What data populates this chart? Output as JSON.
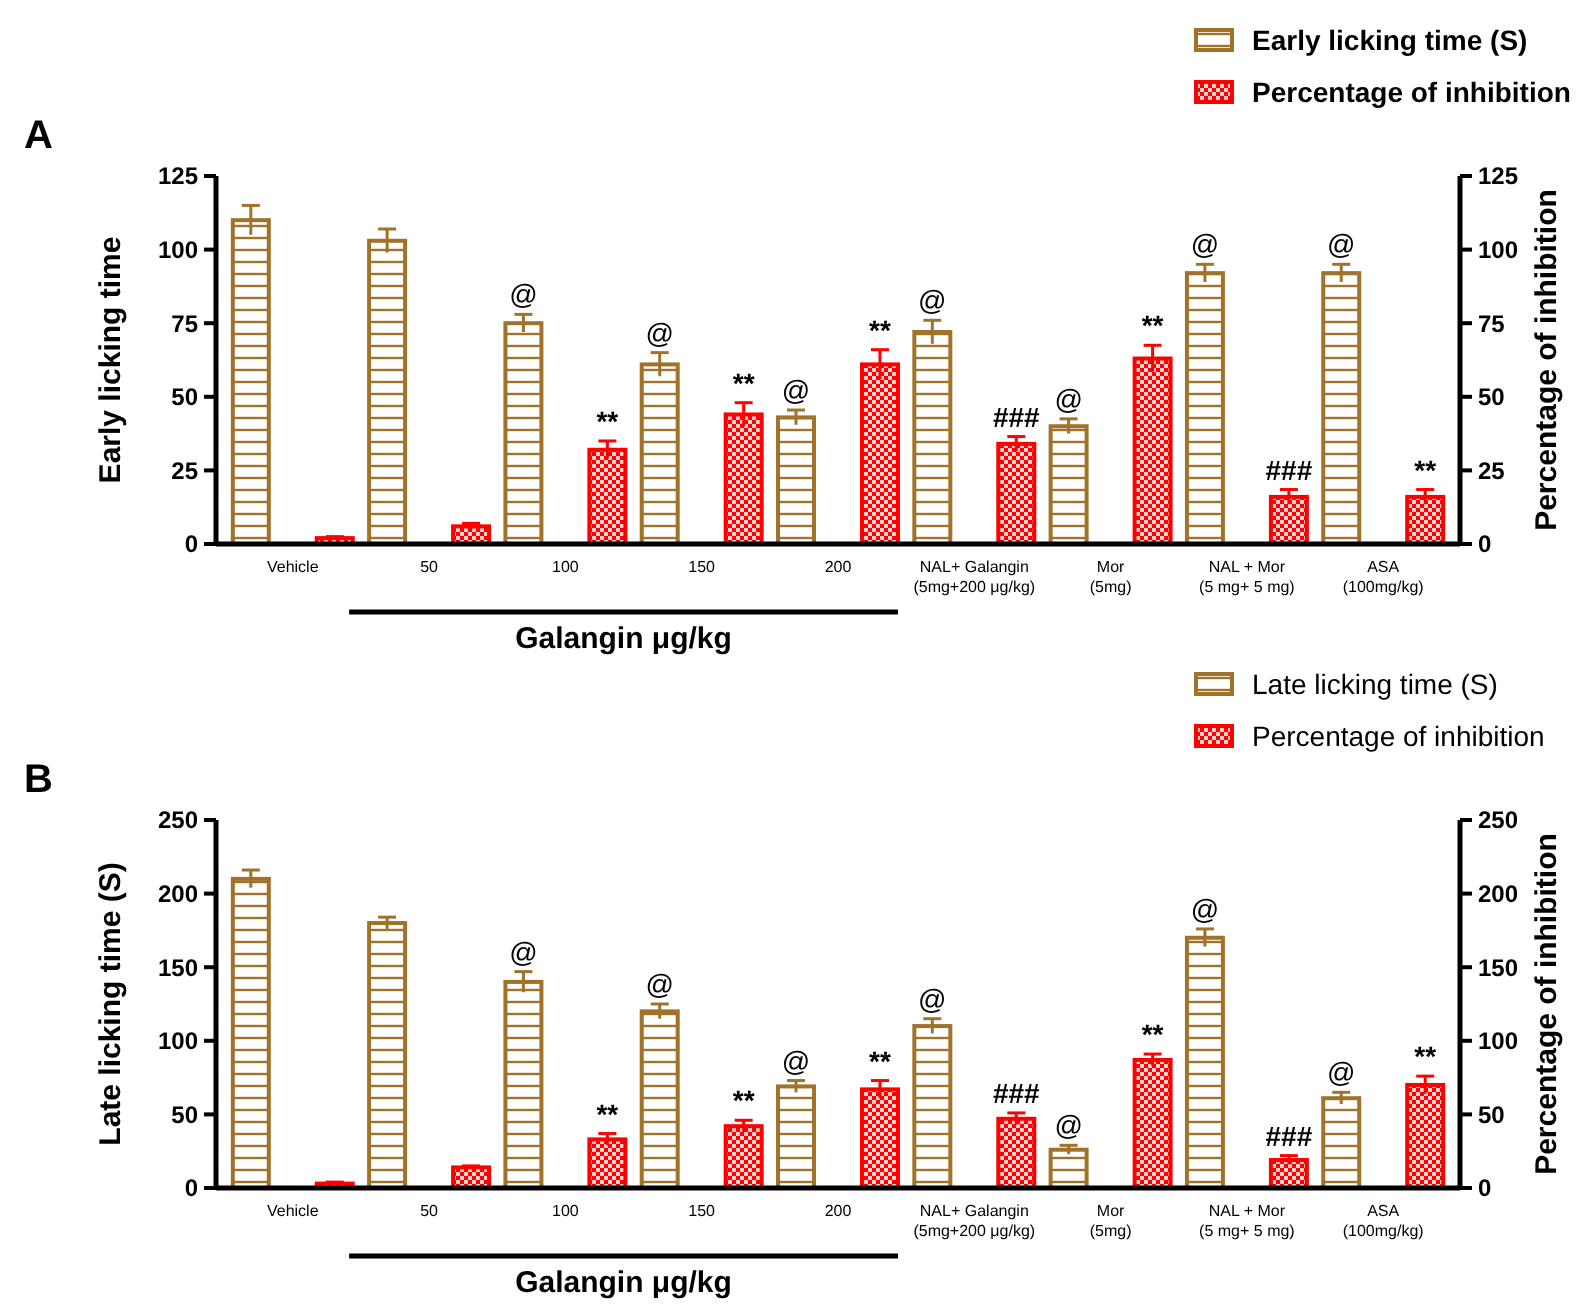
{
  "chart_data": [
    {
      "type": "bar",
      "title": "A",
      "categories": [
        "Vehicle",
        "50",
        "100",
        "150",
        "200",
        "NAL+ Galangin\n(5mg+200 μg/kg)",
        "Mor\n(5mg)",
        "NAL + Mor\n(5 mg+ 5 mg)",
        "ASA\n(100mg/kg)"
      ],
      "xlabel": "Galangin μg/kg",
      "ylabel": "Early licking time",
      "y2label": "Percentage of inhibition",
      "ylim": [
        0,
        125
      ],
      "yticks": [
        0,
        25,
        50,
        75,
        100,
        125
      ],
      "y2lim": [
        0,
        125
      ],
      "y2ticks": [
        0,
        25,
        50,
        75,
        100,
        125
      ],
      "legend": "top right",
      "series": [
        {
          "name": "Early licking time (S)",
          "color": "#a0722a",
          "values": [
            110,
            103,
            75,
            61,
            43,
            72,
            40,
            92,
            92
          ],
          "errors": [
            5,
            4,
            3,
            4,
            2.5,
            4,
            2.5,
            3,
            3
          ],
          "value_labels": [
            null,
            null,
            "@",
            "@",
            "@",
            "@",
            "@",
            "@",
            "@"
          ]
        },
        {
          "name": "Percentage of inhibition",
          "color": "#ff0000",
          "axis": "y2",
          "values": [
            2,
            6,
            32,
            44,
            61,
            34,
            63,
            16,
            16
          ],
          "errors": [
            0.5,
            1,
            3,
            4,
            5,
            2.5,
            4.5,
            2.5,
            2.5
          ],
          "value_labels": [
            null,
            null,
            "**",
            "**",
            "**",
            "###",
            "**",
            "###",
            "**"
          ]
        }
      ]
    },
    {
      "type": "bar",
      "title": "B",
      "categories": [
        "Vehicle",
        "50",
        "100",
        "150",
        "200",
        "NAL+ Galangin\n(5mg+200 μg/kg)",
        "Mor\n(5mg)",
        "NAL + Mor\n(5 mg+ 5 mg)",
        "ASA\n(100mg/kg)"
      ],
      "xlabel": "Galangin μg/kg",
      "ylabel": "Late licking time (S)",
      "y2label": "Percentage of inhibition",
      "ylim": [
        0,
        250
      ],
      "yticks": [
        0,
        50,
        100,
        150,
        200,
        250
      ],
      "y2lim": [
        0,
        250
      ],
      "y2ticks": [
        0,
        50,
        100,
        150,
        200,
        250
      ],
      "legend": "top right",
      "series": [
        {
          "name": "Late licking time (S)",
          "color": "#a0722a",
          "values": [
            210,
            180,
            140,
            120,
            69,
            110,
            26,
            170,
            61
          ],
          "errors": [
            6,
            4,
            7,
            5,
            4,
            5,
            3,
            6,
            4
          ],
          "value_labels": [
            null,
            null,
            "@",
            "@",
            "@",
            "@",
            "@",
            "@",
            "@"
          ]
        },
        {
          "name": "Percentage of inhibition",
          "color": "#ff0000",
          "axis": "y2",
          "values": [
            3,
            14,
            33,
            42,
            67,
            47,
            87,
            19,
            70
          ],
          "errors": [
            1,
            1,
            4,
            4,
            6,
            4,
            4,
            3,
            6
          ],
          "value_labels": [
            null,
            null,
            "**",
            "**",
            "**",
            "###",
            "**",
            "###",
            "**"
          ]
        }
      ]
    }
  ]
}
